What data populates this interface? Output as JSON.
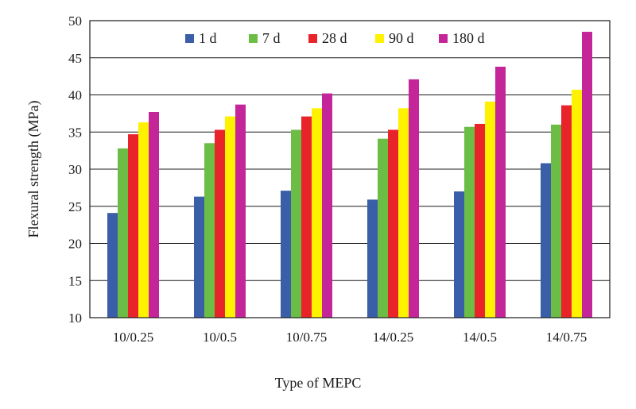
{
  "chart_data": {
    "type": "bar",
    "title": "",
    "xlabel": "Type of MEPC",
    "ylabel": "Flexural strength (MPa)",
    "ylim": [
      10,
      50
    ],
    "yticks": [
      "10",
      "15",
      "20",
      "25",
      "30",
      "35",
      "40",
      "45",
      "50"
    ],
    "grid": "horizontal",
    "legend_position": "top",
    "categories": [
      "10/0.25",
      "10/0.5",
      "10/0.75",
      "14/0.25",
      "14/0.5",
      "14/0.75"
    ],
    "series": [
      {
        "name": "1 d",
        "color": "#3a5ea8",
        "values": [
          24.1,
          26.3,
          27.1,
          25.9,
          27.0,
          30.8
        ]
      },
      {
        "name": "7 d",
        "color": "#6cbd45",
        "values": [
          32.8,
          33.5,
          35.3,
          34.1,
          35.7,
          36.0
        ]
      },
      {
        "name": "28 d",
        "color": "#e8232a",
        "values": [
          34.7,
          35.3,
          37.1,
          35.3,
          36.1,
          38.6
        ]
      },
      {
        "name": "90 d",
        "color": "#fff200",
        "values": [
          36.3,
          37.1,
          38.2,
          38.2,
          39.1,
          40.7
        ]
      },
      {
        "name": "180 d",
        "color": "#c4269a",
        "values": [
          37.7,
          38.7,
          40.2,
          42.1,
          43.8,
          48.5
        ]
      }
    ]
  }
}
